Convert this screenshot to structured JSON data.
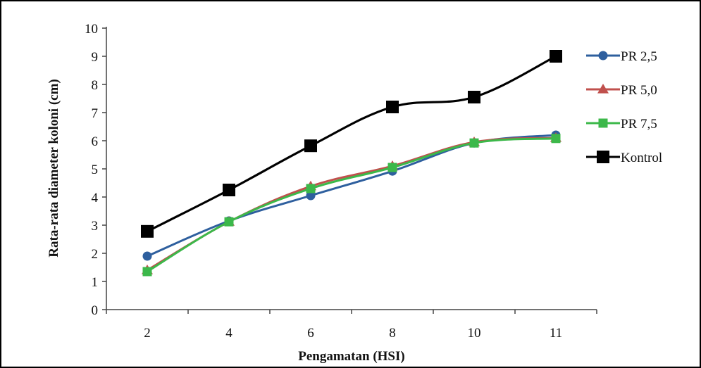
{
  "chart_data": {
    "type": "line",
    "title": "",
    "xlabel": "Pengamatan (HSI)",
    "ylabel": "Rata-rata diameter koloni (cm)",
    "categories": [
      "2",
      "4",
      "6",
      "8",
      "10",
      "11"
    ],
    "ylim": [
      0,
      10
    ],
    "yticks": [
      "0",
      "1",
      "2",
      "3",
      "4",
      "5",
      "6",
      "7",
      "8",
      "9",
      "10"
    ],
    "grid": false,
    "legend_position": "right",
    "series": [
      {
        "name": "PR 2,5",
        "values": [
          1.9,
          3.15,
          4.05,
          4.92,
          5.92,
          6.2
        ],
        "color": "#2e5f9e",
        "marker": "circle"
      },
      {
        "name": "PR 5,0",
        "values": [
          1.4,
          3.12,
          4.38,
          5.1,
          5.95,
          6.1
        ],
        "color": "#c0504d",
        "marker": "triangle"
      },
      {
        "name": "PR 7,5",
        "values": [
          1.35,
          3.12,
          4.3,
          5.05,
          5.92,
          6.08
        ],
        "color": "#3cb84a",
        "marker": "square"
      },
      {
        "name": "Kontrol",
        "values": [
          2.78,
          4.25,
          5.82,
          7.2,
          7.55,
          9.0
        ],
        "color": "#000000",
        "marker": "square-large"
      }
    ]
  }
}
